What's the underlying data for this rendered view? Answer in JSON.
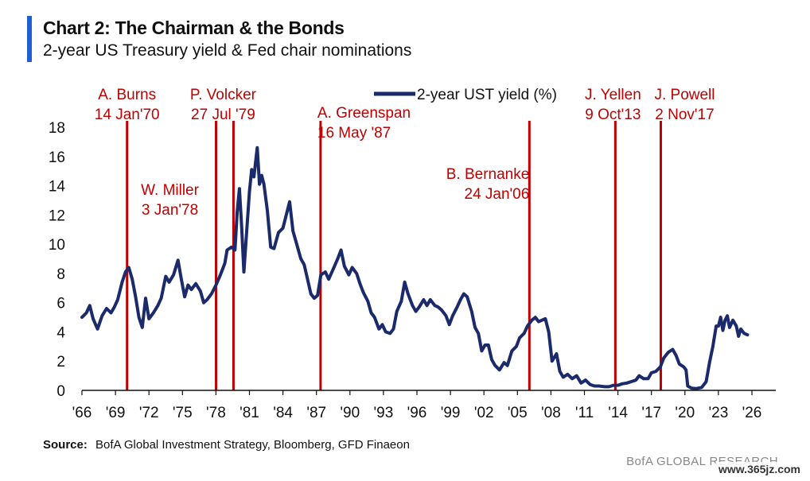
{
  "header": {
    "title": "Chart 2: The Chairman & the Bonds",
    "subtitle": "2-year US Treasury yield & Fed chair nominations"
  },
  "footer": {
    "source_label": "Source:",
    "source_text": "BofA Global Investment Strategy, Bloomberg, GFD Finaeon",
    "brand": "BofA GLOBAL RESEARCH",
    "watermark": "www.365jz.com"
  },
  "colors": {
    "series": "#1b2a6b",
    "event_line": "#c00000",
    "event_text": "#c00000",
    "axis": "#111111",
    "accent": "#1f5fd1"
  },
  "chart_data": {
    "type": "line",
    "xlim": [
      1966,
      2026
    ],
    "ylim": [
      0,
      18
    ],
    "yticks": [
      "0",
      "2",
      "4",
      "6",
      "8",
      "10",
      "12",
      "14",
      "16",
      "18"
    ],
    "xticks": [
      {
        "year": 1966,
        "label": "'66"
      },
      {
        "year": 1969,
        "label": "'69"
      },
      {
        "year": 1972,
        "label": "'72"
      },
      {
        "year": 1975,
        "label": "'75"
      },
      {
        "year": 1978,
        "label": "'78"
      },
      {
        "year": 1981,
        "label": "'81"
      },
      {
        "year": 1984,
        "label": "'84"
      },
      {
        "year": 1987,
        "label": "'87"
      },
      {
        "year": 1990,
        "label": "'90"
      },
      {
        "year": 1993,
        "label": "'93"
      },
      {
        "year": 1996,
        "label": "'96"
      },
      {
        "year": 1999,
        "label": "'99"
      },
      {
        "year": 2002,
        "label": "'02"
      },
      {
        "year": 2005,
        "label": "'05"
      },
      {
        "year": 2008,
        "label": "'08"
      },
      {
        "year": 2011,
        "label": "'11"
      },
      {
        "year": 2014,
        "label": "'14"
      },
      {
        "year": 2017,
        "label": "'17"
      },
      {
        "year": 2020,
        "label": "'20"
      },
      {
        "year": 2023,
        "label": "'23"
      },
      {
        "year": 2026,
        "label": "'26"
      }
    ],
    "grid": false,
    "legend": {
      "position": "top-center",
      "label": "2-year UST yield (%)"
    },
    "series": [
      {
        "name": "2-year UST yield (%)",
        "points": [
          [
            1966.0,
            5.0
          ],
          [
            1966.4,
            5.3
          ],
          [
            1966.7,
            5.8
          ],
          [
            1967.0,
            4.9
          ],
          [
            1967.4,
            4.2
          ],
          [
            1967.8,
            5.1
          ],
          [
            1968.2,
            5.6
          ],
          [
            1968.6,
            5.3
          ],
          [
            1968.9,
            5.7
          ],
          [
            1969.2,
            6.2
          ],
          [
            1969.6,
            7.4
          ],
          [
            1969.9,
            8.1
          ],
          [
            1970.2,
            8.4
          ],
          [
            1970.5,
            7.6
          ],
          [
            1970.8,
            6.4
          ],
          [
            1971.1,
            5.0
          ],
          [
            1971.4,
            4.3
          ],
          [
            1971.7,
            6.3
          ],
          [
            1972.0,
            4.9
          ],
          [
            1972.4,
            5.3
          ],
          [
            1972.8,
            5.8
          ],
          [
            1973.1,
            6.3
          ],
          [
            1973.5,
            7.8
          ],
          [
            1973.8,
            7.4
          ],
          [
            1974.2,
            7.9
          ],
          [
            1974.6,
            8.9
          ],
          [
            1974.9,
            7.6
          ],
          [
            1975.2,
            6.4
          ],
          [
            1975.5,
            7.2
          ],
          [
            1975.8,
            6.9
          ],
          [
            1976.2,
            7.3
          ],
          [
            1976.6,
            6.8
          ],
          [
            1976.9,
            6.0
          ],
          [
            1977.2,
            6.2
          ],
          [
            1977.6,
            6.6
          ],
          [
            1978.0,
            7.2
          ],
          [
            1978.4,
            7.9
          ],
          [
            1978.8,
            8.7
          ],
          [
            1979.0,
            9.6
          ],
          [
            1979.4,
            9.8
          ],
          [
            1979.7,
            9.6
          ],
          [
            1979.9,
            12.2
          ],
          [
            1980.1,
            13.8
          ],
          [
            1980.3,
            11.2
          ],
          [
            1980.5,
            8.1
          ],
          [
            1980.8,
            11.4
          ],
          [
            1981.0,
            13.6
          ],
          [
            1981.2,
            15.1
          ],
          [
            1981.4,
            14.6
          ],
          [
            1981.7,
            16.6
          ],
          [
            1981.9,
            14.1
          ],
          [
            1982.1,
            14.7
          ],
          [
            1982.3,
            14.1
          ],
          [
            1982.6,
            12.3
          ],
          [
            1982.9,
            9.8
          ],
          [
            1983.2,
            9.7
          ],
          [
            1983.6,
            10.8
          ],
          [
            1984.0,
            11.1
          ],
          [
            1984.3,
            12.0
          ],
          [
            1984.6,
            12.9
          ],
          [
            1984.9,
            10.9
          ],
          [
            1985.2,
            10.1
          ],
          [
            1985.6,
            9.0
          ],
          [
            1985.9,
            8.6
          ],
          [
            1986.2,
            7.6
          ],
          [
            1986.5,
            6.6
          ],
          [
            1986.8,
            6.3
          ],
          [
            1987.1,
            6.5
          ],
          [
            1987.4,
            7.9
          ],
          [
            1987.8,
            8.1
          ],
          [
            1988.1,
            7.6
          ],
          [
            1988.5,
            8.3
          ],
          [
            1988.9,
            9.0
          ],
          [
            1989.2,
            9.6
          ],
          [
            1989.5,
            8.5
          ],
          [
            1989.9,
            7.9
          ],
          [
            1990.2,
            8.4
          ],
          [
            1990.6,
            8.0
          ],
          [
            1990.9,
            7.3
          ],
          [
            1991.2,
            6.7
          ],
          [
            1991.6,
            6.1
          ],
          [
            1991.9,
            5.3
          ],
          [
            1992.2,
            5.0
          ],
          [
            1992.6,
            4.2
          ],
          [
            1992.9,
            4.5
          ],
          [
            1993.2,
            4.0
          ],
          [
            1993.6,
            3.9
          ],
          [
            1993.9,
            4.2
          ],
          [
            1994.2,
            5.4
          ],
          [
            1994.6,
            6.1
          ],
          [
            1994.9,
            7.4
          ],
          [
            1995.2,
            6.6
          ],
          [
            1995.6,
            5.8
          ],
          [
            1995.9,
            5.4
          ],
          [
            1996.2,
            5.7
          ],
          [
            1996.6,
            6.2
          ],
          [
            1996.9,
            5.8
          ],
          [
            1997.2,
            6.2
          ],
          [
            1997.6,
            5.8
          ],
          [
            1997.9,
            5.7
          ],
          [
            1998.2,
            5.5
          ],
          [
            1998.6,
            5.1
          ],
          [
            1998.9,
            4.5
          ],
          [
            1999.2,
            5.1
          ],
          [
            1999.6,
            5.7
          ],
          [
            1999.9,
            6.2
          ],
          [
            2000.2,
            6.6
          ],
          [
            2000.5,
            6.4
          ],
          [
            2000.9,
            5.4
          ],
          [
            2001.2,
            4.3
          ],
          [
            2001.5,
            3.9
          ],
          [
            2001.8,
            2.7
          ],
          [
            2002.1,
            3.1
          ],
          [
            2002.4,
            3.1
          ],
          [
            2002.7,
            2.1
          ],
          [
            2003.0,
            1.7
          ],
          [
            2003.4,
            1.4
          ],
          [
            2003.8,
            1.9
          ],
          [
            2004.1,
            1.7
          ],
          [
            2004.5,
            2.7
          ],
          [
            2004.9,
            3.0
          ],
          [
            2005.2,
            3.6
          ],
          [
            2005.6,
            3.9
          ],
          [
            2005.9,
            4.4
          ],
          [
            2006.3,
            4.8
          ],
          [
            2006.6,
            5.0
          ],
          [
            2006.9,
            4.7
          ],
          [
            2007.2,
            4.8
          ],
          [
            2007.5,
            4.9
          ],
          [
            2007.8,
            4.0
          ],
          [
            2008.1,
            2.0
          ],
          [
            2008.5,
            2.5
          ],
          [
            2008.8,
            1.3
          ],
          [
            2009.1,
            0.9
          ],
          [
            2009.5,
            1.1
          ],
          [
            2009.9,
            0.8
          ],
          [
            2010.3,
            1.0
          ],
          [
            2010.7,
            0.5
          ],
          [
            2011.1,
            0.7
          ],
          [
            2011.5,
            0.4
          ],
          [
            2011.9,
            0.3
          ],
          [
            2012.3,
            0.3
          ],
          [
            2012.8,
            0.25
          ],
          [
            2013.2,
            0.25
          ],
          [
            2013.6,
            0.35
          ],
          [
            2014.0,
            0.35
          ],
          [
            2014.4,
            0.45
          ],
          [
            2014.8,
            0.5
          ],
          [
            2015.2,
            0.6
          ],
          [
            2015.6,
            0.7
          ],
          [
            2015.9,
            1.0
          ],
          [
            2016.3,
            0.8
          ],
          [
            2016.7,
            0.8
          ],
          [
            2017.0,
            1.2
          ],
          [
            2017.4,
            1.3
          ],
          [
            2017.8,
            1.6
          ],
          [
            2018.1,
            2.2
          ],
          [
            2018.5,
            2.6
          ],
          [
            2018.9,
            2.8
          ],
          [
            2019.2,
            2.4
          ],
          [
            2019.5,
            1.8
          ],
          [
            2019.9,
            1.6
          ],
          [
            2020.1,
            1.4
          ],
          [
            2020.25,
            0.3
          ],
          [
            2020.6,
            0.15
          ],
          [
            2021.0,
            0.12
          ],
          [
            2021.5,
            0.2
          ],
          [
            2021.9,
            0.6
          ],
          [
            2022.2,
            1.9
          ],
          [
            2022.5,
            3.0
          ],
          [
            2022.8,
            4.4
          ],
          [
            2023.0,
            4.4
          ],
          [
            2023.2,
            5.0
          ],
          [
            2023.4,
            4.1
          ],
          [
            2023.6,
            4.8
          ],
          [
            2023.8,
            5.1
          ],
          [
            2024.0,
            4.3
          ],
          [
            2024.3,
            4.8
          ],
          [
            2024.6,
            4.4
          ],
          [
            2024.8,
            3.7
          ],
          [
            2025.0,
            4.2
          ],
          [
            2025.3,
            3.9
          ],
          [
            2025.6,
            3.8
          ]
        ]
      }
    ],
    "events": [
      {
        "name": "A. Burns",
        "date": "14 Jan'70",
        "year": 1970.04
      },
      {
        "name": "W. Miller",
        "date": "3 Jan'78",
        "year": 1978.01
      },
      {
        "name": "P. Volcker",
        "date": "27 Jul '79",
        "year": 1979.57
      },
      {
        "name": "A. Greenspan",
        "date": "16 May '87",
        "year": 1987.37
      },
      {
        "name": "B. Bernanke",
        "date": "24 Jan'06",
        "year": 2006.07
      },
      {
        "name": "J. Yellen",
        "date": "9 Oct'13",
        "year": 2013.77
      },
      {
        "name": "J. Powell",
        "date": "2 Nov'17",
        "year": 2017.84
      }
    ]
  }
}
